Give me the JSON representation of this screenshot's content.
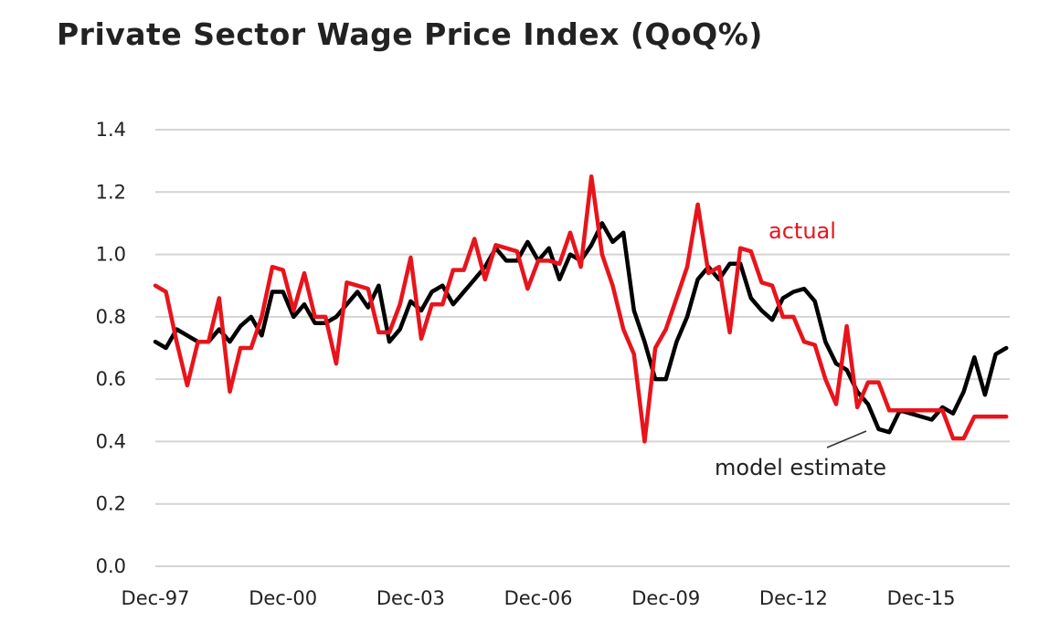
{
  "chart_data": {
    "type": "line",
    "title": "Private Sector Wage Price Index (QoQ%)",
    "xlabel": "",
    "ylabel": "",
    "ylim": [
      0.0,
      1.4
    ],
    "yticks": [
      "0.0",
      "0.2",
      "0.4",
      "0.6",
      "0.8",
      "1.0",
      "1.2",
      "1.4"
    ],
    "xtick_labels": [
      "Dec-97",
      "Dec-00",
      "Dec-03",
      "Dec-06",
      "Dec-09",
      "Dec-12",
      "Dec-15"
    ],
    "grid": true,
    "x_note": "quarterly observations, index 0 = Dec-97, 4 per year",
    "series": [
      {
        "name": "model estimate",
        "color": "#000000",
        "values": [
          0.72,
          0.7,
          0.76,
          0.74,
          0.72,
          0.72,
          0.76,
          0.72,
          0.77,
          0.8,
          0.74,
          0.88,
          0.88,
          0.8,
          0.84,
          0.78,
          0.78,
          0.8,
          0.84,
          0.88,
          0.83,
          0.9,
          0.72,
          0.76,
          0.85,
          0.82,
          0.88,
          0.9,
          0.84,
          0.88,
          0.92,
          0.96,
          1.02,
          0.98,
          0.98,
          1.04,
          0.98,
          1.02,
          0.92,
          1.0,
          0.98,
          1.03,
          1.1,
          1.04,
          1.07,
          0.82,
          0.72,
          0.6,
          0.6,
          0.72,
          0.8,
          0.92,
          0.96,
          0.92,
          0.97,
          0.97,
          0.86,
          0.82,
          0.79,
          0.86,
          0.88,
          0.89,
          0.85,
          0.72,
          0.65,
          0.63,
          0.56,
          0.52,
          0.44,
          0.43,
          0.5,
          0.49,
          0.48,
          0.47,
          0.51,
          0.49,
          0.56,
          0.67,
          0.55,
          0.68,
          0.7
        ]
      },
      {
        "name": "actual",
        "color": "#e8141c",
        "values": [
          0.9,
          0.88,
          0.72,
          0.58,
          0.72,
          0.72,
          0.86,
          0.56,
          0.7,
          0.7,
          0.8,
          0.96,
          0.95,
          0.82,
          0.94,
          0.8,
          0.8,
          0.65,
          0.91,
          0.9,
          0.89,
          0.75,
          0.75,
          0.84,
          0.99,
          0.73,
          0.84,
          0.84,
          0.95,
          0.95,
          1.05,
          0.92,
          1.03,
          1.02,
          1.01,
          0.89,
          0.98,
          0.98,
          0.97,
          1.07,
          0.96,
          1.25,
          1.0,
          0.9,
          0.76,
          0.68,
          0.4,
          0.7,
          0.76,
          0.86,
          0.96,
          1.16,
          0.94,
          0.96,
          0.75,
          1.02,
          1.01,
          0.91,
          0.9,
          0.8,
          0.8,
          0.72,
          0.71,
          0.6,
          0.52,
          0.77,
          0.51,
          0.59,
          0.59,
          0.5,
          0.5,
          0.5,
          0.5,
          0.5,
          0.5,
          0.41,
          0.41,
          0.48,
          0.48,
          0.48,
          0.48
        ]
      }
    ],
    "annotations": [
      {
        "text": "actual",
        "color": "#e8141c"
      },
      {
        "text": "model estimate",
        "color": "#222222"
      }
    ]
  }
}
